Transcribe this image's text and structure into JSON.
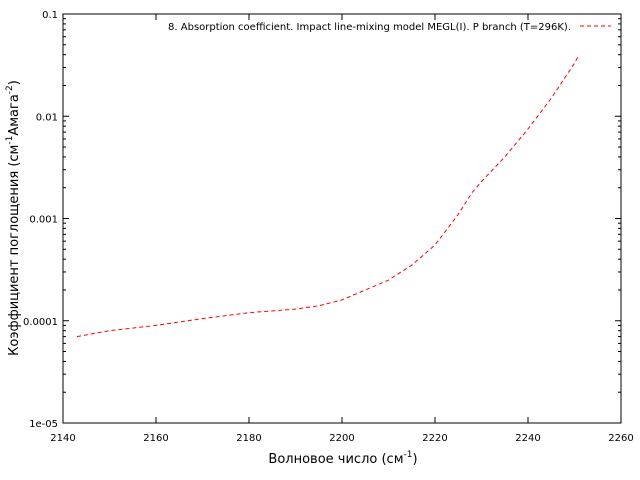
{
  "chart_data": {
    "type": "line",
    "title": "",
    "xlabel": {
      "base": "Волновое число (см",
      "sup": "-1",
      "tail": ")"
    },
    "ylabel": {
      "base": "Коэффициент поглощения (см",
      "sup1": "-1",
      "mid": "Амага",
      "sup2": "-2",
      "tail": ")"
    },
    "xlim": [
      2140,
      2260
    ],
    "ylim": [
      1e-05,
      0.1
    ],
    "yscale": "log",
    "xticks": [
      2140,
      2160,
      2180,
      2200,
      2220,
      2240,
      2260
    ],
    "xtick_labels": [
      "2140",
      "2160",
      "2180",
      "2200",
      "2220",
      "2240",
      "2260"
    ],
    "yticks": [
      1e-05,
      0.0001,
      0.001,
      0.01,
      0.1
    ],
    "ytick_labels": [
      "1e-05",
      "0.0001",
      "0.001",
      "0.01",
      "0.1"
    ],
    "grid": false,
    "legend_position": "top-right",
    "series": [
      {
        "name": "8. Absorption coefficient. Impact line-mixing model MEGL(I). P branch (T=296K).",
        "color": "#ff0000",
        "dash": "dashed",
        "x": [
          2143,
          2150,
          2160,
          2170,
          2180,
          2190,
          2195,
          2200,
          2205,
          2210,
          2215,
          2220,
          2225,
          2228,
          2230,
          2235,
          2240,
          2245,
          2250,
          2251
        ],
        "y": [
          7e-05,
          8e-05,
          9e-05,
          0.000105,
          0.00012,
          0.00013,
          0.00014,
          0.00016,
          0.0002,
          0.00025,
          0.00035,
          0.00055,
          0.0011,
          0.0018,
          0.0023,
          0.004,
          0.0075,
          0.015,
          0.033,
          0.04
        ]
      }
    ]
  }
}
